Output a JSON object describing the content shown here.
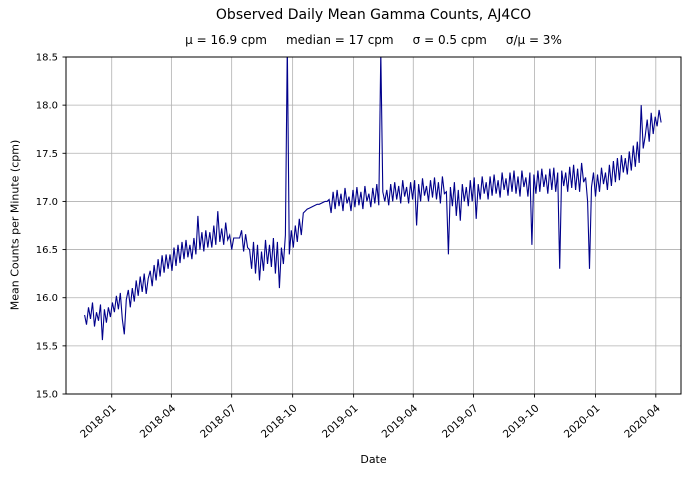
{
  "chart_data": {
    "type": "line",
    "title": "Observed Daily Mean Gamma Counts, AJ4CO",
    "subtitle": "μ = 16.9 cpm     median = 17 cpm     σ = 0.5 cpm     σ/μ = 3%",
    "stats": {
      "mean_cpm": 16.9,
      "median_cpm": 17,
      "sigma_cpm": 0.5,
      "sigma_over_mean_pct": 3
    },
    "xlabel": "Date",
    "ylabel": "Mean Counts per Minute (cpm)",
    "ylim": [
      15.0,
      18.5
    ],
    "grid": true,
    "legend": "none",
    "line_color": "#00008b",
    "grid_color": "#b0b0b0",
    "spine_color": "#000000",
    "y_ticks": {
      "values": [
        15.0,
        15.5,
        16.0,
        16.5,
        17.0,
        17.5,
        18.0,
        18.5
      ],
      "labels": [
        "15.0",
        "15.5",
        "16.0",
        "16.5",
        "17.0",
        "17.5",
        "18.0",
        "18.5"
      ]
    },
    "x_ticks": {
      "labels": [
        "2018-01",
        "2018-04",
        "2018-07",
        "2018-10",
        "2019-01",
        "2019-04",
        "2019-07",
        "2019-10",
        "2020-01",
        "2020-04"
      ],
      "days": [
        41,
        131,
        222,
        314,
        406,
        496,
        587,
        679,
        771,
        862
      ]
    },
    "x_domain_days": [
      -28,
      900
    ],
    "x_start_date": "2017-11-21",
    "series": [
      {
        "name": "observed daily mean gamma counts",
        "start_day": 0,
        "step_days": 3,
        "values": [
          15.82,
          15.72,
          15.9,
          15.78,
          15.95,
          15.7,
          15.85,
          15.76,
          15.93,
          15.56,
          15.88,
          15.74,
          15.9,
          15.8,
          15.95,
          15.85,
          16.02,
          15.88,
          16.05,
          15.78,
          15.62,
          15.98,
          16.08,
          15.9,
          16.1,
          15.96,
          16.18,
          16.02,
          16.22,
          16.06,
          16.25,
          16.04,
          16.2,
          16.28,
          16.12,
          16.34,
          16.18,
          16.4,
          16.22,
          16.44,
          16.26,
          16.45,
          16.3,
          16.45,
          16.28,
          16.52,
          16.33,
          16.55,
          16.36,
          16.58,
          16.4,
          16.6,
          16.42,
          16.55,
          16.4,
          16.62,
          16.45,
          16.85,
          16.5,
          16.68,
          16.48,
          16.7,
          16.52,
          16.68,
          16.52,
          16.75,
          16.55,
          16.9,
          16.58,
          16.72,
          16.55,
          16.78,
          16.6,
          16.65,
          16.5,
          16.62,
          16.62,
          16.62,
          16.62,
          16.7,
          16.48,
          16.66,
          16.52,
          16.5,
          16.3,
          16.58,
          16.25,
          16.55,
          16.18,
          16.48,
          16.28,
          16.6,
          16.35,
          16.55,
          16.32,
          16.62,
          16.25,
          16.58,
          16.1,
          16.52,
          16.35,
          16.65,
          18.62,
          16.45,
          16.7,
          16.52,
          16.75,
          16.58,
          16.82,
          16.65,
          16.88,
          16.9,
          16.92,
          16.93,
          16.94,
          16.95,
          16.96,
          16.97,
          16.97,
          16.98,
          16.99,
          17.0,
          17.0,
          17.02,
          16.88,
          17.1,
          16.92,
          17.12,
          16.95,
          17.08,
          16.9,
          17.14,
          16.98,
          17.05,
          16.9,
          17.12,
          16.94,
          17.15,
          16.96,
          17.1,
          16.92,
          17.16,
          17.0,
          17.08,
          16.94,
          17.14,
          16.98,
          17.18,
          16.96,
          18.55,
          17.1,
          17.0,
          17.12,
          16.96,
          17.18,
          17.0,
          17.2,
          17.02,
          17.16,
          16.98,
          17.22,
          17.05,
          17.15,
          16.98,
          17.2,
          17.02,
          17.22,
          16.75,
          17.18,
          17.0,
          17.24,
          17.06,
          17.16,
          17.0,
          17.22,
          17.04,
          17.25,
          17.02,
          17.2,
          16.98,
          17.26,
          17.08,
          17.1,
          16.45,
          17.15,
          16.95,
          17.2,
          16.85,
          17.12,
          16.8,
          17.18,
          17.0,
          17.15,
          16.95,
          17.22,
          17.0,
          17.25,
          16.82,
          17.18,
          17.02,
          17.26,
          17.08,
          17.2,
          17.02,
          17.26,
          17.06,
          17.28,
          17.08,
          17.22,
          17.04,
          17.3,
          17.12,
          17.24,
          17.06,
          17.3,
          17.1,
          17.32,
          17.08,
          17.26,
          17.05,
          17.32,
          17.15,
          17.25,
          17.05,
          17.3,
          16.55,
          17.28,
          17.08,
          17.32,
          17.1,
          17.34,
          17.15,
          17.28,
          17.08,
          17.34,
          17.12,
          17.35,
          17.1,
          17.3,
          16.3,
          17.32,
          17.16,
          17.3,
          17.1,
          17.36,
          17.14,
          17.38,
          17.12,
          17.34,
          17.1,
          17.4,
          17.2,
          17.25,
          17.0,
          16.3,
          17.15,
          17.3,
          17.05,
          17.28,
          17.1,
          17.35,
          17.18,
          17.3,
          17.12,
          17.38,
          17.16,
          17.42,
          17.2,
          17.45,
          17.22,
          17.48,
          17.3,
          17.45,
          17.28,
          17.52,
          17.32,
          17.58,
          17.36,
          17.62,
          17.4,
          18.0,
          17.55,
          17.68,
          17.85,
          17.62,
          17.92,
          17.7,
          17.88,
          17.78,
          17.95,
          17.82
        ]
      }
    ]
  }
}
